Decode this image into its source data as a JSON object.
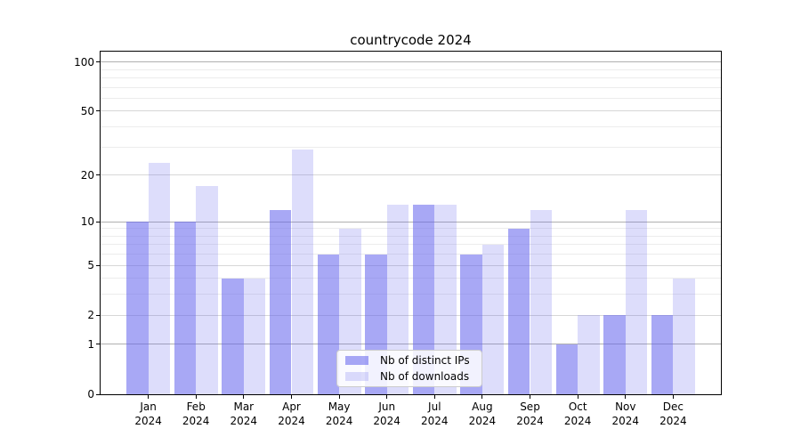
{
  "title": "countrycode 2024",
  "chart_data": {
    "type": "bar",
    "title": "countrycode 2024",
    "categories": [
      "Jan",
      "Feb",
      "Mar",
      "Apr",
      "May",
      "Jun",
      "Jul",
      "Aug",
      "Sep",
      "Oct",
      "Nov",
      "Dec"
    ],
    "year_label": "2024",
    "series": [
      {
        "name": "Nb of distinct IPs",
        "color": "#6464ee",
        "alpha": 0.56,
        "values": [
          10,
          10,
          4,
          12,
          6,
          6,
          13,
          6,
          9,
          1,
          2,
          2
        ]
      },
      {
        "name": "Nb of downloads",
        "color": "#6464ee",
        "alpha": 0.22,
        "values": [
          24,
          17,
          4,
          29,
          9,
          13,
          13,
          7,
          12,
          2,
          12,
          4
        ]
      }
    ],
    "yscale": "log10(value+1)",
    "ylim": [
      0,
      116
    ],
    "ytick_labels": [
      100,
      50,
      20,
      10,
      5,
      2,
      1,
      0
    ],
    "gridlines": {
      "strong": [
        1,
        10,
        100
      ],
      "medium": [
        2,
        5,
        20,
        50
      ],
      "faint": [
        3,
        4,
        6,
        7,
        8,
        9,
        30,
        40,
        60,
        70,
        80,
        90
      ]
    },
    "grid": true,
    "legend_position": "lower center"
  }
}
